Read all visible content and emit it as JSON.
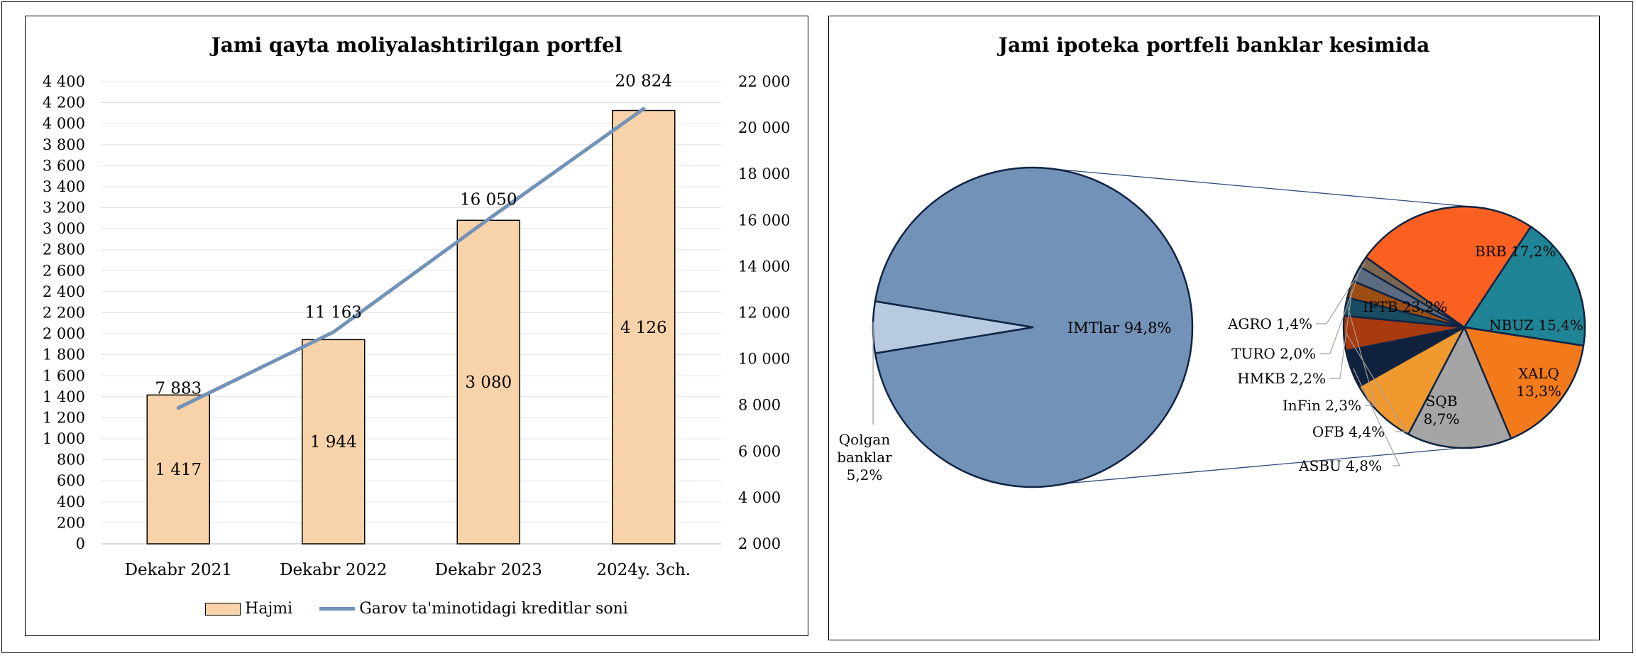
{
  "chart_data": [
    {
      "type": "bar",
      "title": "Jami qayta moliyalashtirilgan portfel",
      "categories": [
        "Dekabr 2021",
        "Dekabr 2022",
        "Dekabr 2023",
        "2024y. 3ch."
      ],
      "ylim": [
        0,
        4400
      ],
      "y2lim": [
        2000,
        22000
      ],
      "y_ticks": [
        "0",
        "200",
        "400",
        "600",
        "800",
        "1 000",
        "1 200",
        "1 400",
        "1 600",
        "1 800",
        "2 000",
        "2 200",
        "2 400",
        "2 600",
        "2 800",
        "3 000",
        "3 200",
        "3 400",
        "3 600",
        "3 800",
        "4 000",
        "4 200",
        "4 400"
      ],
      "y2_ticks": [
        "2 000",
        "4 000",
        "6 000",
        "8 000",
        "10 000",
        "12 000",
        "14 000",
        "16 000",
        "18 000",
        "20 000",
        "22 000"
      ],
      "series": [
        {
          "name": "Hajmi",
          "type": "bar",
          "axis": "left",
          "color": "#F8D3A9",
          "values": [
            1417,
            1944,
            3080,
            4126
          ],
          "labels": [
            "1 417",
            "1 944",
            "3 080",
            "4 126"
          ]
        },
        {
          "name": "Garov ta'minotidagi kreditlar soni",
          "type": "line",
          "axis": "right",
          "color": "#7392B8",
          "values": [
            7883,
            11163,
            16050,
            20824
          ],
          "labels": [
            "7 883",
            "11 163",
            "16 050",
            "20 824"
          ]
        }
      ],
      "legend": "bottom"
    },
    {
      "type": "pie",
      "title": "Jami ipoteka portfeli banklar kesimida",
      "main_slices": [
        {
          "label": "IMTlar 94,8%",
          "value": 94.8,
          "color": "#7392B8"
        },
        {
          "label": "Qolgan banklar 5,2%",
          "value": 5.2,
          "color": "#B8CADF"
        }
      ],
      "breakdown_slices": [
        {
          "label": "BRB 17,2%",
          "value": 17.2,
          "color": "#1E8496"
        },
        {
          "label": "NBUZ 15,4%",
          "value": 15.4,
          "color": "#F27A1B"
        },
        {
          "label": "XALQ 13,3%",
          "value": 13.3,
          "color": "#A5A5A5"
        },
        {
          "label": "SQB 8,7%",
          "value": 8.7,
          "color": "#F0992E"
        },
        {
          "label": "ASBU 4,8%",
          "value": 4.8,
          "color": "#10213E"
        },
        {
          "label": "OFB 4,4%",
          "value": 4.4,
          "color": "#A83A0E"
        },
        {
          "label": "InFin 2,3%",
          "value": 2.3,
          "color": "#184D62"
        },
        {
          "label": "HMKB 2,2%",
          "value": 2.2,
          "color": "#9C4E12"
        },
        {
          "label": "TURO 2,0%",
          "value": 2.0,
          "color": "#5C6C80"
        },
        {
          "label": "AGRO 1,4%",
          "value": 1.4,
          "color": "#7A6650"
        },
        {
          "label": "IPTB 23,2%",
          "value": 23.2,
          "color": "#FB6020"
        }
      ],
      "legend": "none"
    }
  ]
}
